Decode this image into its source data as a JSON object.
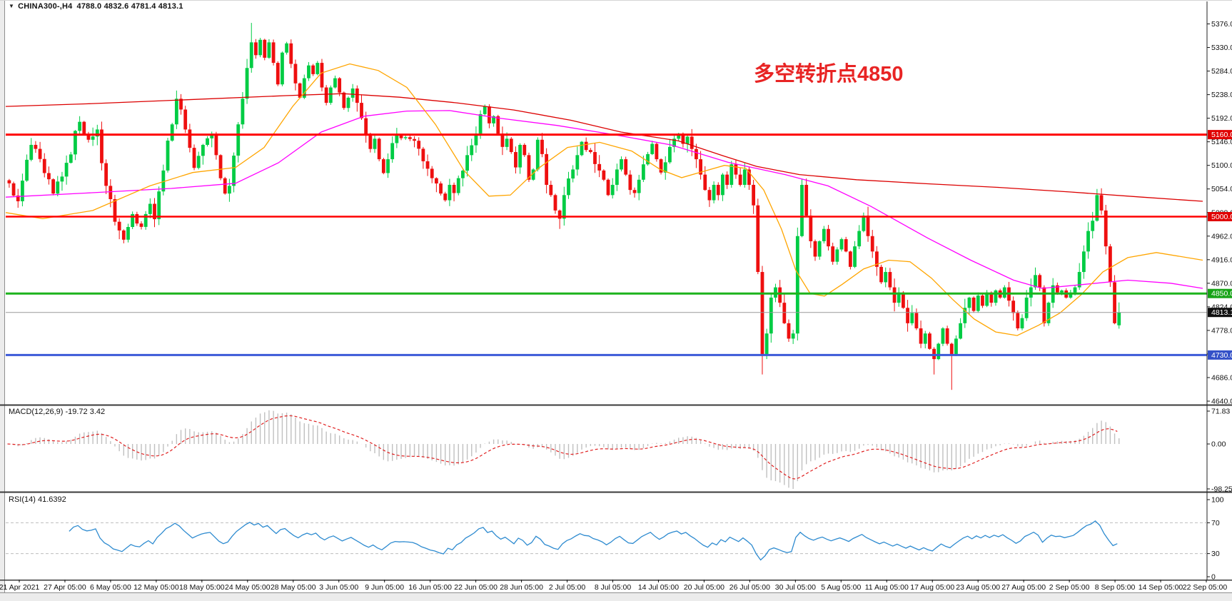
{
  "window": {
    "symbol_timeframe": "CHINA300-,H4",
    "ohlc_values": "4788.0 4832.6 4781.4 4813.1"
  },
  "chart_data": {
    "type": "candlestick",
    "symbol": "CHINA300-",
    "timeframe": "H4",
    "title": "CHINA300-,H4 4788.0 4832.6 4781.4 4813.1",
    "last_bar": {
      "open": 4788.0,
      "high": 4832.6,
      "low": 4781.4,
      "close": 4813.1
    },
    "ylim": [
      4640,
      5376
    ],
    "y_ticks": [
      "5376.0",
      "5330.0",
      "5284.0",
      "5238.0",
      "5192.0",
      "5146.0",
      "5100.0",
      "5054.0",
      "5008.0",
      "4962.0",
      "4916.0",
      "4870.0",
      "4824.0",
      "4778.0",
      "4732.0",
      "4686.0",
      "4640.0"
    ],
    "x_tick_labels": [
      "21 Apr 2021",
      "27 Apr 05:00",
      "6 May 05:00",
      "12 May 05:00",
      "18 May 05:00",
      "24 May 05:00",
      "28 May 05:00",
      "3 Jun 05:00",
      "9 Jun 05:00",
      "16 Jun 05:00",
      "22 Jun 05:00",
      "28 Jun 05:00",
      "2 Jul 05:00",
      "8 Jul 05:00",
      "14 Jul 05:00",
      "20 Jul 05:00",
      "26 Jul 05:00",
      "30 Jul 05:00",
      "5 Aug 05:00",
      "11 Aug 05:00",
      "17 Aug 05:00",
      "23 Aug 05:00",
      "27 Aug 05:00",
      "2 Sep 05:00",
      "8 Sep 05:00",
      "14 Sep 05:00",
      "22 Sep 05:00"
    ],
    "candle_colors": {
      "up": "#00CC44",
      "down": "#EE0F0F"
    },
    "levels": [
      {
        "label": "5160.0",
        "price": 5160,
        "color": "#FF0000",
        "badge_bg": "#E00000",
        "width": 3
      },
      {
        "label": "5000.0",
        "price": 5000,
        "color": "#FF0000",
        "badge_bg": "#E00000",
        "width": 2.5
      },
      {
        "label": "4850.0",
        "price": 4850,
        "color": "#1DB31D",
        "badge_bg": "#16A316",
        "width": 3
      },
      {
        "label": "4730.0",
        "price": 4730,
        "color": "#3C5AD8",
        "badge_bg": "#3451C8",
        "width": 3
      }
    ],
    "current_price": {
      "label": "4813.1",
      "price": 4813.1,
      "line_color": "#999999",
      "badge_bg": "#101010"
    },
    "annotation": {
      "text": "多空转折点4850",
      "color": "#E82424"
    },
    "price_path": [
      [
        0,
        5065
      ],
      [
        2,
        5030
      ],
      [
        5,
        5140
      ],
      [
        8,
        5085
      ],
      [
        10,
        5045
      ],
      [
        13,
        5105
      ],
      [
        16,
        5185
      ],
      [
        18,
        5150
      ],
      [
        20,
        5170
      ],
      [
        22,
        5060
      ],
      [
        24,
        4990
      ],
      [
        26,
        4955
      ],
      [
        28,
        5005
      ],
      [
        30,
        4980
      ],
      [
        32,
        5025
      ],
      [
        33,
        4995
      ],
      [
        35,
        5090
      ],
      [
        37,
        5180
      ],
      [
        38,
        5230
      ],
      [
        40,
        5170
      ],
      [
        42,
        5095
      ],
      [
        44,
        5140
      ],
      [
        46,
        5160
      ],
      [
        47,
        5120
      ],
      [
        49,
        5045
      ],
      [
        50,
        5060
      ],
      [
        52,
        5180
      ],
      [
        54,
        5290
      ],
      [
        55,
        5340
      ],
      [
        56,
        5315
      ],
      [
        57,
        5345
      ],
      [
        58,
        5310
      ],
      [
        59,
        5340
      ],
      [
        60,
        5300
      ],
      [
        61,
        5258
      ],
      [
        62,
        5320
      ],
      [
        63,
        5338
      ],
      [
        64,
        5298
      ],
      [
        65,
        5260
      ],
      [
        66,
        5232
      ],
      [
        67,
        5270
      ],
      [
        68,
        5295
      ],
      [
        69,
        5278
      ],
      [
        70,
        5300
      ],
      [
        71,
        5252
      ],
      [
        72,
        5222
      ],
      [
        73,
        5252
      ],
      [
        74,
        5270
      ],
      [
        75,
        5242
      ],
      [
        76,
        5212
      ],
      [
        77,
        5232
      ],
      [
        78,
        5250
      ],
      [
        79,
        5222
      ],
      [
        80,
        5192
      ],
      [
        81,
        5158
      ],
      [
        82,
        5132
      ],
      [
        83,
        5152
      ],
      [
        84,
        5112
      ],
      [
        85,
        5085
      ],
      [
        86,
        5112
      ],
      [
        88,
        5158
      ],
      [
        90,
        5155
      ],
      [
        92,
        5148
      ],
      [
        94,
        5108
      ],
      [
        96,
        5075
      ],
      [
        98,
        5045
      ],
      [
        99,
        5032
      ],
      [
        100,
        5062
      ],
      [
        101,
        5046
      ],
      [
        102,
        5075
      ],
      [
        104,
        5120
      ],
      [
        106,
        5162
      ],
      [
        107,
        5200
      ],
      [
        108,
        5215
      ],
      [
        109,
        5182
      ],
      [
        110,
        5196
      ],
      [
        111,
        5162
      ],
      [
        112,
        5136
      ],
      [
        113,
        5152
      ],
      [
        114,
        5126
      ],
      [
        115,
        5096
      ],
      [
        116,
        5140
      ],
      [
        117,
        5120
      ],
      [
        118,
        5072
      ],
      [
        119,
        5092
      ],
      [
        120,
        5150
      ],
      [
        121,
        5122
      ],
      [
        122,
        5062
      ],
      [
        123,
        5042
      ],
      [
        124,
        5012
      ],
      [
        125,
        4996
      ],
      [
        126,
        5042
      ],
      [
        128,
        5092
      ],
      [
        129,
        5120
      ],
      [
        130,
        5146
      ],
      [
        131,
        5130
      ],
      [
        132,
        5126
      ],
      [
        134,
        5090
      ],
      [
        135,
        5072
      ],
      [
        136,
        5042
      ],
      [
        137,
        5062
      ],
      [
        138,
        5092
      ],
      [
        139,
        5112
      ],
      [
        140,
        5082
      ],
      [
        141,
        5052
      ],
      [
        142,
        5046
      ],
      [
        143,
        5072
      ],
      [
        144,
        5102
      ],
      [
        145,
        5122
      ],
      [
        146,
        5142
      ],
      [
        147,
        5112
      ],
      [
        148,
        5086
      ],
      [
        149,
        5106
      ],
      [
        150,
        5136
      ],
      [
        151,
        5152
      ],
      [
        152,
        5162
      ],
      [
        153,
        5142
      ],
      [
        154,
        5156
      ],
      [
        155,
        5132
      ],
      [
        156,
        5112
      ],
      [
        157,
        5082
      ],
      [
        158,
        5052
      ],
      [
        159,
        5032
      ],
      [
        160,
        5062
      ],
      [
        161,
        5042
      ],
      [
        162,
        5082
      ],
      [
        163,
        5062
      ],
      [
        164,
        5102
      ],
      [
        165,
        5082
      ],
      [
        166,
        5062
      ],
      [
        167,
        5092
      ],
      [
        168,
        5062
      ],
      [
        169,
        5022
      ],
      [
        170,
        4892
      ],
      [
        171,
        4732
      ],
      [
        172,
        4772
      ],
      [
        173,
        4842
      ],
      [
        174,
        4862
      ],
      [
        175,
        4832
      ],
      [
        176,
        4792
      ],
      [
        177,
        4762
      ],
      [
        178,
        4772
      ],
      [
        179,
        4962
      ],
      [
        180,
        5062
      ],
      [
        181,
        5002
      ],
      [
        182,
        4952
      ],
      [
        183,
        4922
      ],
      [
        184,
        4952
      ],
      [
        185,
        4976
      ],
      [
        186,
        4942
      ],
      [
        187,
        4912
      ],
      [
        188,
        4936
      ],
      [
        189,
        4956
      ],
      [
        190,
        4932
      ],
      [
        191,
        4902
      ],
      [
        192,
        4942
      ],
      [
        193,
        4972
      ],
      [
        194,
        5002
      ],
      [
        195,
        4962
      ],
      [
        196,
        4932
      ],
      [
        197,
        4902
      ],
      [
        198,
        4872
      ],
      [
        199,
        4892
      ],
      [
        200,
        4862
      ],
      [
        201,
        4832
      ],
      [
        202,
        4852
      ],
      [
        203,
        4822
      ],
      [
        204,
        4792
      ],
      [
        205,
        4812
      ],
      [
        206,
        4782
      ],
      [
        207,
        4752
      ],
      [
        208,
        4772
      ],
      [
        209,
        4742
      ],
      [
        210,
        4722
      ],
      [
        211,
        4752
      ],
      [
        212,
        4782
      ],
      [
        213,
        4752
      ],
      [
        214,
        4732
      ],
      [
        215,
        4762
      ],
      [
        216,
        4792
      ],
      [
        217,
        4822
      ],
      [
        218,
        4842
      ],
      [
        219,
        4816
      ],
      [
        220,
        4846
      ],
      [
        221,
        4826
      ],
      [
        222,
        4852
      ],
      [
        223,
        4832
      ],
      [
        224,
        4856
      ],
      [
        225,
        4842
      ],
      [
        226,
        4862
      ],
      [
        227,
        4836
      ],
      [
        228,
        4812
      ],
      [
        229,
        4782
      ],
      [
        230,
        4802
      ],
      [
        231,
        4842
      ],
      [
        232,
        4862
      ],
      [
        233,
        4886
      ],
      [
        234,
        4862
      ],
      [
        235,
        4792
      ],
      [
        236,
        4832
      ],
      [
        237,
        4866
      ],
      [
        238,
        4852
      ],
      [
        239,
        4856
      ],
      [
        240,
        4842
      ],
      [
        241,
        4852
      ],
      [
        242,
        4862
      ],
      [
        243,
        4892
      ],
      [
        244,
        4932
      ],
      [
        245,
        4972
      ],
      [
        246,
        4992
      ],
      [
        247,
        5042
      ],
      [
        248,
        5012
      ],
      [
        249,
        4942
      ],
      [
        250,
        4872
      ],
      [
        251,
        4792
      ],
      [
        252,
        4813
      ]
    ],
    "wick_overrides": {
      "16": [
        5196,
        null
      ],
      "38": [
        5246,
        null
      ],
      "55": [
        5378,
        null
      ],
      "125": [
        null,
        4976
      ],
      "171": [
        null,
        4692
      ],
      "210": [
        null,
        4692
      ],
      "214": [
        null,
        4662
      ],
      "247": [
        5054,
        null
      ]
    },
    "ma_lines": [
      {
        "name": "ma-slow-red",
        "color": "#DC0000",
        "points": [
          [
            8,
            5215
          ],
          [
            120,
            5220
          ],
          [
            260,
            5228
          ],
          [
            400,
            5236
          ],
          [
            480,
            5240
          ],
          [
            560,
            5233
          ],
          [
            640,
            5222
          ],
          [
            720,
            5208
          ],
          [
            800,
            5188
          ],
          [
            870,
            5165
          ],
          [
            950,
            5148
          ],
          [
            1010,
            5120
          ],
          [
            1060,
            5098
          ],
          [
            1120,
            5082
          ],
          [
            1200,
            5072
          ],
          [
            1300,
            5064
          ],
          [
            1400,
            5057
          ],
          [
            1500,
            5048
          ],
          [
            1600,
            5038
          ],
          [
            1685,
            5030
          ]
        ]
      },
      {
        "name": "ma-mid-magenta",
        "color": "#FF00FF",
        "points": [
          [
            8,
            5038
          ],
          [
            120,
            5046
          ],
          [
            240,
            5055
          ],
          [
            330,
            5065
          ],
          [
            390,
            5105
          ],
          [
            450,
            5165
          ],
          [
            510,
            5196
          ],
          [
            570,
            5206
          ],
          [
            630,
            5207
          ],
          [
            700,
            5192
          ],
          [
            780,
            5178
          ],
          [
            860,
            5160
          ],
          [
            940,
            5140
          ],
          [
            1020,
            5106
          ],
          [
            1100,
            5082
          ],
          [
            1160,
            5060
          ],
          [
            1220,
            5020
          ],
          [
            1300,
            4958
          ],
          [
            1360,
            4915
          ],
          [
            1420,
            4876
          ],
          [
            1460,
            4860
          ],
          [
            1520,
            4868
          ],
          [
            1580,
            4876
          ],
          [
            1640,
            4870
          ],
          [
            1685,
            4860
          ]
        ]
      },
      {
        "name": "ma-fast-orange",
        "color": "#FFA500",
        "points": [
          [
            8,
            5008
          ],
          [
            60,
            4996
          ],
          [
            130,
            5012
          ],
          [
            210,
            5060
          ],
          [
            270,
            5086
          ],
          [
            330,
            5096
          ],
          [
            370,
            5135
          ],
          [
            410,
            5215
          ],
          [
            450,
            5280
          ],
          [
            490,
            5298
          ],
          [
            530,
            5285
          ],
          [
            570,
            5252
          ],
          [
            610,
            5180
          ],
          [
            650,
            5090
          ],
          [
            685,
            5040
          ],
          [
            715,
            5042
          ],
          [
            755,
            5095
          ],
          [
            795,
            5135
          ],
          [
            840,
            5145
          ],
          [
            885,
            5128
          ],
          [
            925,
            5092
          ],
          [
            955,
            5076
          ],
          [
            985,
            5088
          ],
          [
            1015,
            5100
          ],
          [
            1045,
            5094
          ],
          [
            1070,
            5052
          ],
          [
            1095,
            4975
          ],
          [
            1115,
            4895
          ],
          [
            1135,
            4850
          ],
          [
            1155,
            4845
          ],
          [
            1180,
            4868
          ],
          [
            1210,
            4898
          ],
          [
            1245,
            4915
          ],
          [
            1275,
            4912
          ],
          [
            1305,
            4880
          ],
          [
            1335,
            4838
          ],
          [
            1365,
            4800
          ],
          [
            1395,
            4775
          ],
          [
            1425,
            4768
          ],
          [
            1455,
            4788
          ],
          [
            1485,
            4812
          ],
          [
            1515,
            4848
          ],
          [
            1545,
            4892
          ],
          [
            1580,
            4920
          ],
          [
            1620,
            4930
          ],
          [
            1685,
            4915
          ]
        ]
      }
    ],
    "macd": {
      "label": "MACD(12,26,9) -19.72 3.42",
      "params": [
        12,
        26,
        9
      ],
      "main_value": -19.72,
      "signal_value": 3.42,
      "scale_labels": [
        "71.83",
        "0.00",
        "-98.25"
      ],
      "scale_values": [
        71.83,
        0,
        -98.25
      ],
      "histogram_color": "#C0C0C0",
      "signal_color": "#E02020"
    },
    "rsi": {
      "label": "RSI(14) 41.6392",
      "period": 14,
      "value": 41.6392,
      "level_labels": [
        "100",
        "70",
        "30",
        "0"
      ],
      "levels": [
        100,
        70,
        30,
        0
      ],
      "dashed_levels": [
        70,
        30
      ],
      "line_color": "#2E8BD0"
    }
  }
}
